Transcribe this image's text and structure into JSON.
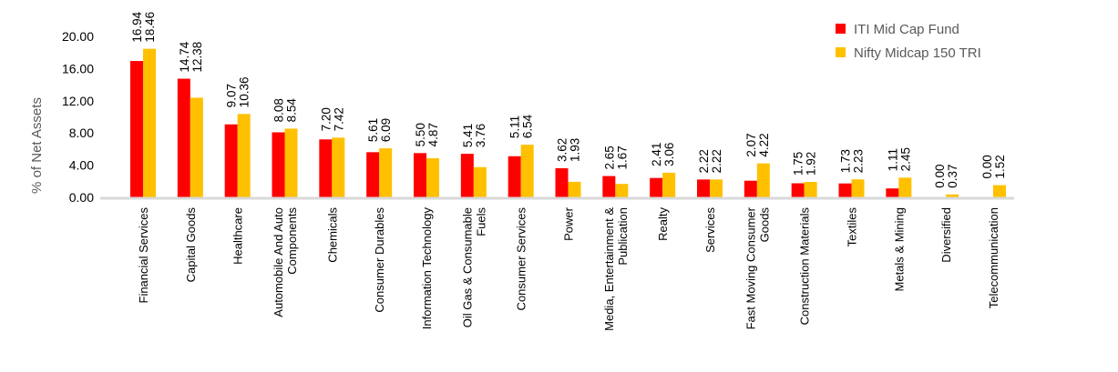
{
  "chart_data": {
    "type": "bar",
    "title": "",
    "xlabel": "",
    "ylabel": "% of Net Assets",
    "ylim": [
      0,
      20
    ],
    "yticks": [
      "0.00",
      "4.00",
      "8.00",
      "12.00",
      "16.00",
      "20.00"
    ],
    "legend_position": "top-right",
    "categories": [
      [
        "Financial Services"
      ],
      [
        "Capital Goods"
      ],
      [
        "Healthcare"
      ],
      [
        "Automobile And Auto",
        "Components"
      ],
      [
        "Chemicals"
      ],
      [
        "Consumer Durables"
      ],
      [
        "Information Technology"
      ],
      [
        "Oil Gas & Consumable",
        "Fuels"
      ],
      [
        "Consumer Services"
      ],
      [
        "Power"
      ],
      [
        "Media, Entertainment &",
        "Publication"
      ],
      [
        "Realty"
      ],
      [
        "Services"
      ],
      [
        "Fast Moving Consumer",
        "Goods"
      ],
      [
        "Construction Materials"
      ],
      [
        "Textiles"
      ],
      [
        "Metals & Mining"
      ],
      [
        "Diversified"
      ],
      [
        "Telecommunication"
      ]
    ],
    "series": [
      {
        "name": "ITI Mid Cap Fund",
        "color": "#ff0000",
        "values": [
          16.94,
          14.74,
          9.07,
          8.08,
          7.2,
          5.61,
          5.5,
          5.41,
          5.11,
          3.62,
          2.65,
          2.41,
          2.22,
          2.07,
          1.75,
          1.73,
          1.11,
          0.0,
          0.0
        ]
      },
      {
        "name": "Nifty Midcap 150 TRI",
        "color": "#ffc000",
        "values": [
          18.46,
          12.38,
          10.36,
          8.54,
          7.42,
          6.09,
          4.87,
          3.76,
          6.54,
          1.93,
          1.67,
          3.06,
          2.22,
          4.22,
          1.92,
          2.23,
          2.45,
          0.37,
          1.52
        ]
      }
    ]
  }
}
